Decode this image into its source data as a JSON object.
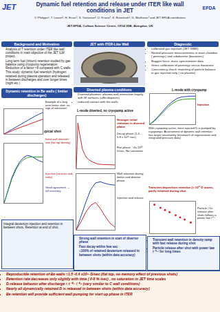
{
  "header": {
    "logo": "JET",
    "title": "Dynamic fuel retention and release under ITER like wall conditions in JET",
    "authors": "V. Philipps¹, T. Loarer², H. Esser³, S. Vartanian², U. Kruezi³, S. Brezinsek¹, G. Matthews³ and JET EFDA contributors",
    "affiliation": "JET-EFDA, Culham Science Centre, OX14 3DB, Abingdon, UK",
    "right_logo": "EFDA"
  },
  "left": {
    "heading": "Background and Motivation",
    "bullets": [
      "Analysis of T retention under ITER like wall conditions in main objective of the JET ILW project.",
      "Long term fuel (tritium) retention studied by gas balance using cryopump regeneration: Reduction of a factor >8 compared with C walls",
      "This study: dynamic fuel retention (hydrogen retained during plasma operation and released in between discharges and over longer times (night etc.)"
    ],
    "heading2": "Dynamic retention in Be walls ( limiter discharges)",
    "note1": "Example of a long term limiter shot: no sign of saturation!",
    "label_typical": "Typical shot",
    "note2": "Initial wall retention rate (flat top density)",
    "note3": "Injection (sources and sinks)",
    "note4": "Good agreement → full inventory",
    "box": "Integral deuterium injection and retention in between shots. Retention at end of shot."
  },
  "middle": {
    "heading": "JET with ITER-Like Wall",
    "heading2": "Diverted plasma conditions",
    "bullets": [
      "Diverted plasmas: plasma-wall interaction largely with W surfaces (=Be-deposits)",
      "reduced contact with the walls"
    ],
    "label_lmode": "L-mode diverted, no cryopump active",
    "note1": "Stronger initial retention in diverted phase",
    "note2": "Decay phase (1.4 - 5.8 x 10²¹ /sec)",
    "note3": "Flat phase: ~4x 10²⁰ D/sec, No saturation",
    "note4": "Wall retention during limiter and divertor phase",
    "note5": "Injection and release",
    "box": [
      "Strong wall retention in start of divertor phase",
      "Fast decay within few sec",
      "≈100% of retained deuterium released in between shots (within data accuracy)"
    ]
  },
  "right": {
    "heading": "Diagnostic",
    "bullets": [
      "calibrated gas injection (JET GIM5)",
      "Neutral pressure measurements in main chamber ( pennings) and subdivertor (baratrons)",
      "Buggert force: mass spectrometer data",
      "Gross calibration of pennings versus baratrons",
      "Consistency check: matching of particle balance in gas injection only ( no plasma)"
    ],
    "label_cryo": "L-mode with cryopump",
    "note1": "Injection",
    "text1": "With cryopump active, most injected D is pumped by cryopumps. Assessment of dynamic wall retention has larger uncertainty (mismatch of regeneration and integrated pressure data)",
    "note2": "Transient deposition retention (≈ 10²² D atoms, partly retained during shot",
    "note3": "Particle / Dc release after shots follows a power law t⁻⁰·⁷",
    "box": [
      "Transient wall retention in density ramp with fast release during shot",
      "Particle release after shot with power law t⁻⁰·⁷ for long times"
    ]
  },
  "conclusions": [
    "Reproducible retention of Be-walls ≈1.5 -0.4 x10²¹ D/sec (flat top, no memory effect of previous shots)",
    "Retention rate decreases only slightly with time ( 0-8 % /sec) , no saturation in JET time scales",
    "D-release behavior after discharge ≈ t⁻⁰·⁷ / ⁰·⁸ (very similar to C wall conditions)",
    "Nearly all dynamically retained D is released in between shots (within data accuracy)",
    "Be retention will provide sufficient wall pumping for start up phase in ITER"
  ],
  "chart_data": [
    {
      "type": "line",
      "xlim": [
        0,
        20
      ],
      "ylim": [
        0,
        10
      ],
      "tick_labels": false,
      "grid": false,
      "x": [
        0,
        2,
        4,
        6,
        8,
        10,
        12,
        14,
        16,
        18,
        20
      ],
      "series": [
        {
          "color": "#1f3fbf",
          "values": [
            0,
            0.9,
            1.9,
            2.8,
            3.7,
            4.6,
            5.5,
            6.3,
            7.1,
            7.9,
            8.6
          ]
        },
        {
          "color": "#d62728",
          "values": [
            0,
            0.5,
            1.2,
            1.9,
            2.5,
            3.1,
            3.7,
            4.3,
            4.9,
            5.4,
            5.9
          ]
        }
      ]
    },
    {
      "type": "line",
      "xlim": [
        0,
        30
      ],
      "ylim": [
        0,
        8
      ],
      "tick_labels": false,
      "grid": false,
      "x": [
        0,
        3,
        6,
        9,
        12,
        15,
        18,
        21,
        24,
        27,
        30
      ],
      "series": [
        {
          "color": "#1f3fbf",
          "values": [
            0,
            1.8,
            3.4,
            4.6,
            5.5,
            6.1,
            6.4,
            6.3,
            6.0,
            5.7,
            5.5
          ]
        },
        {
          "color": "#2ca02c",
          "values": [
            0,
            1.7,
            3.2,
            4.4,
            5.3,
            5.8,
            6.1,
            6.2,
            6.2,
            6.2,
            6.2
          ]
        }
      ]
    },
    {
      "type": "line",
      "xlim": [
        0,
        25
      ],
      "ylim": [
        0,
        6
      ],
      "tick_labels": false,
      "grid": false,
      "x": [
        0,
        1,
        2,
        3,
        4,
        6,
        8,
        11,
        14,
        17,
        20,
        25
      ],
      "series": [
        {
          "color": "#d62728",
          "values": [
            0,
            5.2,
            4.1,
            3.0,
            2.2,
            1.4,
            1.0,
            0.7,
            0.5,
            0.45,
            0.42,
            0.4
          ]
        }
      ]
    },
    {
      "type": "line",
      "xlim": [
        0,
        40
      ],
      "ylim": [
        0,
        10
      ],
      "tick_labels": false,
      "grid": false,
      "x": [
        0,
        5,
        10,
        15,
        20,
        25,
        30,
        35,
        40
      ],
      "series": [
        {
          "color": "#1f3fbf",
          "values": [
            0,
            2.5,
            5.0,
            7.2,
            8.4,
            8.6,
            8.3,
            8.1,
            8.0
          ]
        },
        {
          "color": "#d62728",
          "values": [
            0,
            1.5,
            3.2,
            4.4,
            4.9,
            3.8,
            2.4,
            1.2,
            0.5
          ]
        }
      ]
    },
    {
      "type": "line",
      "xlim": [
        0,
        30
      ],
      "ylim": [
        0,
        12
      ],
      "tick_labels": false,
      "grid": false,
      "x": [
        0,
        3,
        6,
        9,
        12,
        15,
        18,
        21,
        24,
        27,
        30
      ],
      "series": [
        {
          "color": "#1f3fbf",
          "values": [
            0,
            1.5,
            3.5,
            5.5,
            7.5,
            9.0,
            10.2,
            10.8,
            11.0,
            11.1,
            11.1
          ]
        },
        {
          "color": "#2ca02c",
          "values": [
            0,
            1.2,
            3.0,
            5.0,
            6.8,
            8.2,
            9.2,
            9.8,
            10.0,
            10.0,
            10.0
          ]
        }
      ]
    },
    {
      "type": "scatter",
      "log": true,
      "xlim": [
        1,
        1000
      ],
      "ylim": [
        0.01,
        10
      ],
      "tick_labels": false,
      "grid": false,
      "marker": "circle",
      "x": [
        2,
        5,
        10,
        20,
        50,
        100,
        200,
        500
      ],
      "series": [
        {
          "color": "#d62728",
          "values": [
            5.0,
            2.6,
            1.6,
            1.0,
            0.52,
            0.32,
            0.2,
            0.105
          ]
        }
      ]
    }
  ]
}
